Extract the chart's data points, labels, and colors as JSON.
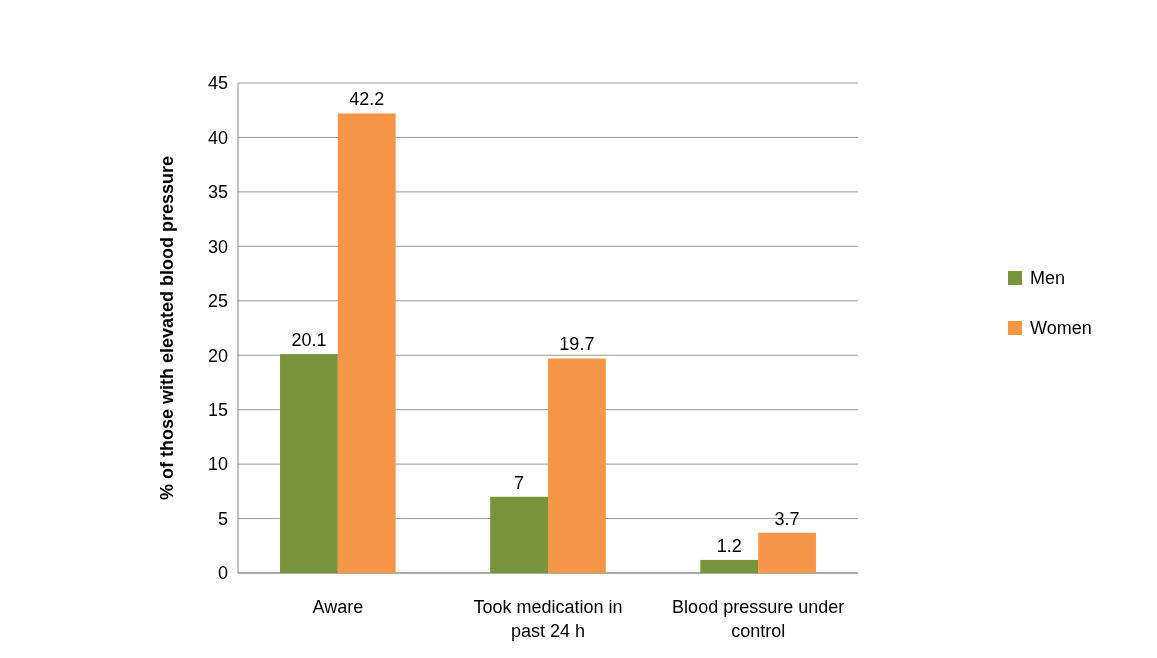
{
  "chart_data": {
    "type": "bar",
    "ylabel": "% of those with elevated blood pressure",
    "categories": [
      "Aware",
      "Took medication in past 24 h",
      "Blood pressure under control"
    ],
    "series": [
      {
        "name": "Men",
        "color": "#77933c",
        "values": [
          20.1,
          7,
          1.2
        ]
      },
      {
        "name": "Women",
        "color": "#f79646",
        "values": [
          42.2,
          19.7,
          3.7
        ]
      }
    ],
    "ylim": [
      0,
      45
    ],
    "yticks": [
      0,
      5,
      10,
      15,
      20,
      25,
      30,
      35,
      40,
      45
    ],
    "grid": true,
    "legend": "right",
    "data_labels": true
  }
}
